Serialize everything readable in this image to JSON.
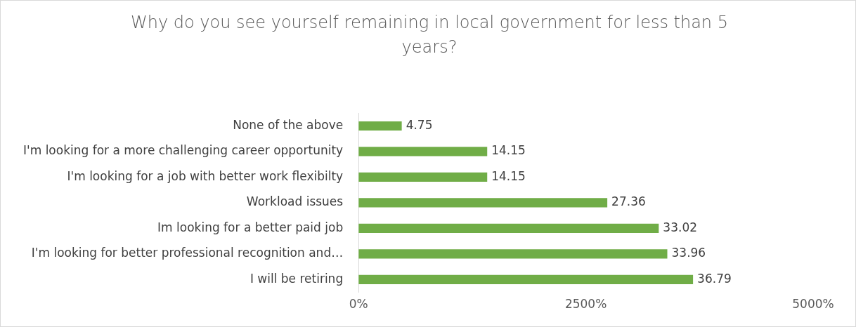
{
  "chart_data": {
    "type": "bar",
    "orientation": "horizontal",
    "title": "Why do you see yourself remaining in local government for less than 5 years?",
    "categories": [
      "None of the above",
      "I'm looking for a more challenging career opportunity",
      "I'm looking for a job with better work flexibilty",
      "Workload issues",
      "Im looking for a better paid job",
      "I'm looking for better professional recognition and…",
      "I will be retiring"
    ],
    "values": [
      4.75,
      14.15,
      14.15,
      27.36,
      33.02,
      33.96,
      36.79
    ],
    "color": "#70ad47",
    "xlim": [
      0,
      50
    ],
    "xticks": [
      {
        "value": 0,
        "label": "0%"
      },
      {
        "value": 25,
        "label": "2500%"
      },
      {
        "value": 50,
        "label": "5000%"
      }
    ],
    "data_labels": true,
    "grid": false,
    "legend": false
  }
}
